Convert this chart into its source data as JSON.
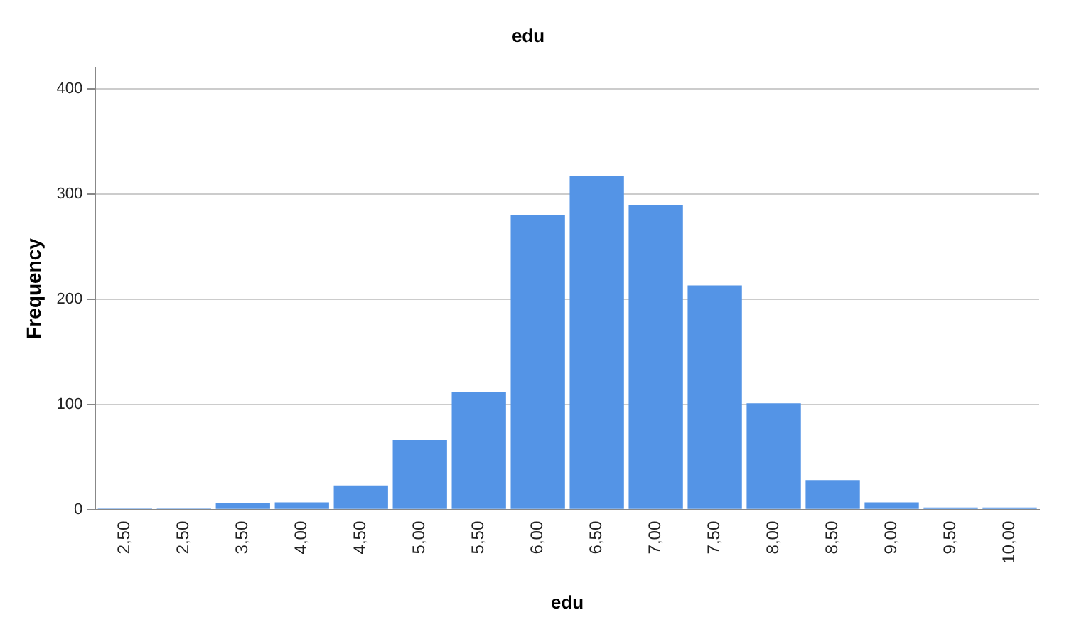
{
  "chart_data": {
    "type": "bar",
    "title": "edu",
    "xlabel": "edu",
    "ylabel": "Frequency",
    "categories": [
      "2,50",
      "2,50",
      "3,50",
      "4,00",
      "4,50",
      "5,00",
      "5,50",
      "6,00",
      "6,50",
      "7,00",
      "7,50",
      "8,00",
      "8,50",
      "9,00",
      "9,50",
      "10,00"
    ],
    "values": [
      1,
      1,
      6,
      7,
      23,
      66,
      112,
      280,
      317,
      289,
      213,
      101,
      28,
      7,
      2,
      2
    ],
    "color": "#5494e6",
    "ylim": [
      0,
      420
    ],
    "yticks": [
      0,
      100,
      200,
      300,
      400
    ],
    "grid": "y",
    "legend": false
  }
}
